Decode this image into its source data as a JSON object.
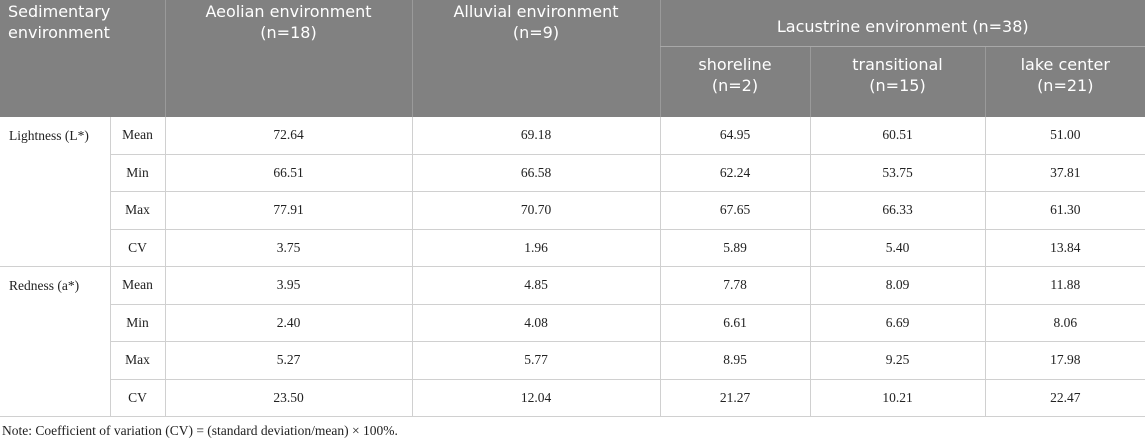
{
  "table": {
    "header": {
      "stub": "Sedimentary environment",
      "columns": [
        "Aeolian environment (n=18)",
        "Alluvial environment (n=9)"
      ],
      "group": "Lacustrine environment (n=38)",
      "subcolumns": [
        "shoreline (n=2)",
        "transitional (n=15)",
        "lake center (n=21)"
      ]
    },
    "groups": [
      {
        "label": "Lightness (L*)",
        "rows": [
          {
            "stat": "Mean",
            "values": [
              "72.64",
              "69.18",
              "64.95",
              "60.51",
              "51.00"
            ]
          },
          {
            "stat": "Min",
            "values": [
              "66.51",
              "66.58",
              "62.24",
              "53.75",
              "37.81"
            ]
          },
          {
            "stat": "Max",
            "values": [
              "77.91",
              "70.70",
              "67.65",
              "66.33",
              "61.30"
            ]
          },
          {
            "stat": "CV",
            "values": [
              "3.75",
              "1.96",
              "5.89",
              "5.40",
              "13.84"
            ]
          }
        ]
      },
      {
        "label": "Redness (a*)",
        "rows": [
          {
            "stat": "Mean",
            "values": [
              "3.95",
              "4.85",
              "7.78",
              "8.09",
              "11.88"
            ]
          },
          {
            "stat": "Min",
            "values": [
              "2.40",
              "4.08",
              "6.61",
              "6.69",
              "8.06"
            ]
          },
          {
            "stat": "Max",
            "values": [
              "5.27",
              "5.77",
              "8.95",
              "9.25",
              "17.98"
            ]
          },
          {
            "stat": "CV",
            "values": [
              "23.50",
              "12.04",
              "21.27",
              "10.21",
              "22.47"
            ]
          }
        ]
      }
    ]
  },
  "note": "Note: Coefficient of variation (CV) = (standard deviation/mean) × 100%."
}
